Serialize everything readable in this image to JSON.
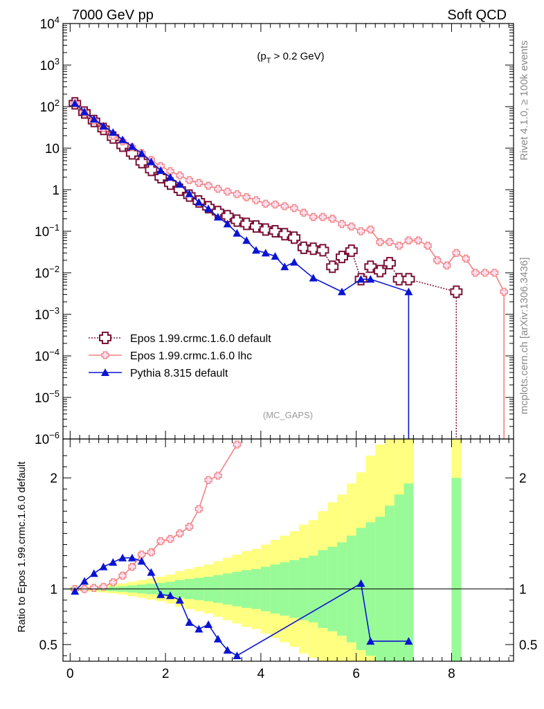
{
  "header": {
    "left": "7000 GeV pp",
    "right": "Soft QCD"
  },
  "side_labels": {
    "rivet": "Rivet 4.1.0, ≥ 100k events",
    "site": "mcplots.cern.ch [arXiv:1306.3436]"
  },
  "annotation": {
    "cut_open": "(p",
    "cut_sub": "T",
    "cut_close": " > 0.2 GeV)",
    "analysis": "(MC_GAPS)"
  },
  "ratio_ylabel": "Ratio to Epos 1.99.crmc.1.6.0 default",
  "colors": {
    "epos_default": "#7a1236",
    "epos_lhc": "#f08080",
    "pythia": "#0a14d2",
    "band_green": "#98fb98",
    "band_yellow": "#ffff80"
  },
  "chart_data": [
    {
      "type": "line",
      "panel": "main",
      "yscale": "log",
      "xlim": [
        -0.15,
        9.3
      ],
      "ylim": [
        1e-06,
        10000.0
      ],
      "y_tick_labels": [
        "10^4",
        "10^3",
        "10^2",
        "10",
        "1",
        "10^-1",
        "10^-2",
        "10^-3",
        "10^-4",
        "10^-5",
        "10^-6"
      ],
      "legend_position": "lower-left",
      "series": [
        {
          "name": "Epos 1.99.crmc.1.6.0 default",
          "key": "epos_default",
          "marker": "open-cross",
          "dash": "2,2",
          "x": [
            0.1,
            0.3,
            0.5,
            0.7,
            0.9,
            1.1,
            1.3,
            1.5,
            1.7,
            1.9,
            2.1,
            2.3,
            2.5,
            2.7,
            2.9,
            3.1,
            3.3,
            3.5,
            3.7,
            3.9,
            4.1,
            4.3,
            4.5,
            4.7,
            4.9,
            5.1,
            5.3,
            5.5,
            5.7,
            5.9,
            6.1,
            6.3,
            6.5,
            6.7,
            6.9,
            7.1,
            8.1
          ],
          "y": [
            120,
            72,
            45,
            29,
            18,
            11.5,
            7.5,
            4.6,
            3.0,
            2.0,
            1.4,
            1.0,
            0.72,
            0.52,
            0.38,
            0.29,
            0.23,
            0.18,
            0.15,
            0.13,
            0.11,
            0.1,
            0.085,
            0.07,
            0.04,
            0.038,
            0.035,
            0.014,
            0.024,
            0.034,
            0.007,
            0.014,
            0.011,
            0.017,
            0.007,
            0.007,
            0.0035
          ]
        },
        {
          "name": "Epos 1.99.crmc.1.6.0 lhc",
          "key": "epos_lhc",
          "marker": "small-cross",
          "dash": "",
          "x": [
            0.1,
            0.3,
            0.5,
            0.7,
            0.9,
            1.1,
            1.3,
            1.5,
            1.7,
            1.9,
            2.1,
            2.3,
            2.5,
            2.7,
            2.9,
            3.1,
            3.3,
            3.5,
            3.7,
            3.9,
            4.1,
            4.3,
            4.5,
            4.7,
            4.9,
            5.1,
            5.3,
            5.5,
            5.7,
            5.9,
            6.1,
            6.3,
            6.5,
            6.7,
            6.9,
            7.1,
            7.3,
            7.5,
            7.7,
            7.9,
            8.1,
            8.3,
            8.5,
            8.7,
            8.9,
            9.1
          ],
          "y": [
            120,
            72,
            46,
            30,
            20,
            14.5,
            10.5,
            7.6,
            5.2,
            3.7,
            2.8,
            2.2,
            1.7,
            1.45,
            1.25,
            1.05,
            0.9,
            0.78,
            0.66,
            0.56,
            0.46,
            0.44,
            0.4,
            0.36,
            0.28,
            0.22,
            0.22,
            0.2,
            0.15,
            0.13,
            0.1,
            0.11,
            0.055,
            0.055,
            0.045,
            0.06,
            0.06,
            0.045,
            0.02,
            0.015,
            0.03,
            0.022,
            0.01,
            0.01,
            0.01,
            0.0035
          ]
        },
        {
          "name": "Pythia 8.315 default",
          "key": "pythia",
          "marker": "triangle",
          "dash": "",
          "x": [
            0.1,
            0.3,
            0.5,
            0.7,
            0.9,
            1.1,
            1.3,
            1.5,
            1.7,
            1.9,
            2.1,
            2.3,
            2.5,
            2.7,
            2.9,
            3.1,
            3.3,
            3.5,
            3.7,
            3.9,
            4.1,
            4.3,
            4.5,
            4.7,
            5.1,
            5.7,
            6.1,
            6.3,
            7.1
          ],
          "y": [
            120,
            75,
            50,
            34,
            24,
            16,
            11,
            7.5,
            4.7,
            2.9,
            2.0,
            1.35,
            0.8,
            0.5,
            0.35,
            0.22,
            0.15,
            0.09,
            0.06,
            0.035,
            0.03,
            0.025,
            0.014,
            0.018,
            0.0075,
            0.0035,
            0.007,
            0.007,
            0.0035
          ]
        }
      ]
    },
    {
      "type": "line",
      "panel": "ratio",
      "ylabel": "Ratio to Epos 1.99.crmc.1.6.0 default",
      "xlabel": "",
      "xlim": [
        -0.15,
        9.3
      ],
      "ylim": [
        0.35,
        2.35
      ],
      "x_ticks": [
        0,
        2,
        4,
        6,
        8
      ],
      "y_ticks": [
        0.5,
        1,
        2
      ],
      "band_edges": [
        0,
        0.2,
        0.4,
        0.6,
        0.8,
        1.0,
        1.2,
        1.4,
        1.6,
        1.8,
        2.0,
        2.2,
        2.4,
        2.6,
        2.8,
        3.0,
        3.2,
        3.4,
        3.6,
        3.8,
        4.0,
        4.2,
        4.4,
        4.6,
        4.8,
        5.0,
        5.2,
        5.4,
        5.6,
        5.8,
        6.0,
        6.2,
        6.4,
        6.6,
        6.8,
        7.0,
        7.2
      ],
      "band_green": [
        0.01,
        0.01,
        0.013,
        0.016,
        0.02,
        0.025,
        0.032,
        0.04,
        0.047,
        0.055,
        0.065,
        0.08,
        0.09,
        0.1,
        0.11,
        0.125,
        0.14,
        0.155,
        0.17,
        0.18,
        0.2,
        0.22,
        0.24,
        0.26,
        0.28,
        0.3,
        0.35,
        0.38,
        0.42,
        0.48,
        0.55,
        0.6,
        0.65,
        0.75,
        0.85,
        0.95
      ],
      "band_yellow": [
        0.02,
        0.02,
        0.026,
        0.032,
        0.04,
        0.05,
        0.065,
        0.08,
        0.095,
        0.11,
        0.13,
        0.16,
        0.18,
        0.2,
        0.22,
        0.25,
        0.28,
        0.31,
        0.34,
        0.36,
        0.4,
        0.44,
        0.48,
        0.52,
        0.58,
        0.62,
        0.7,
        0.78,
        0.85,
        0.95,
        1.05,
        1.2,
        1.3,
        1.5,
        1.6,
        1.8
      ],
      "band_single": {
        "x0": 8.0,
        "x1": 8.2,
        "green": 1.0,
        "yellow": 2.0
      },
      "series": [
        {
          "name": "Epos 1.99.crmc.1.6.0 lhc",
          "key": "epos_lhc",
          "x": [
            0.1,
            0.3,
            0.5,
            0.7,
            0.9,
            1.1,
            1.3,
            1.5,
            1.7,
            1.9,
            2.1,
            2.3,
            2.5,
            2.7,
            2.9,
            3.1,
            3.5
          ],
          "y": [
            1.0,
            1.0,
            1.01,
            1.02,
            1.06,
            1.12,
            1.2,
            1.31,
            1.33,
            1.43,
            1.45,
            1.5,
            1.56,
            1.72,
            1.98,
            2.02,
            2.3
          ]
        },
        {
          "name": "Pythia 8.315 default",
          "key": "pythia",
          "x": [
            0.1,
            0.3,
            0.5,
            0.7,
            0.9,
            1.1,
            1.3,
            1.5,
            1.7,
            1.9,
            2.1,
            2.3,
            2.5,
            2.7,
            2.9,
            3.1,
            3.3,
            3.5,
            6.1,
            6.3,
            7.1
          ],
          "y": [
            0.98,
            1.07,
            1.14,
            1.2,
            1.24,
            1.28,
            1.28,
            1.25,
            1.15,
            0.95,
            0.94,
            0.9,
            0.7,
            0.64,
            0.68,
            0.55,
            0.45,
            0.4,
            1.05,
            0.53,
            0.53
          ]
        }
      ]
    }
  ]
}
